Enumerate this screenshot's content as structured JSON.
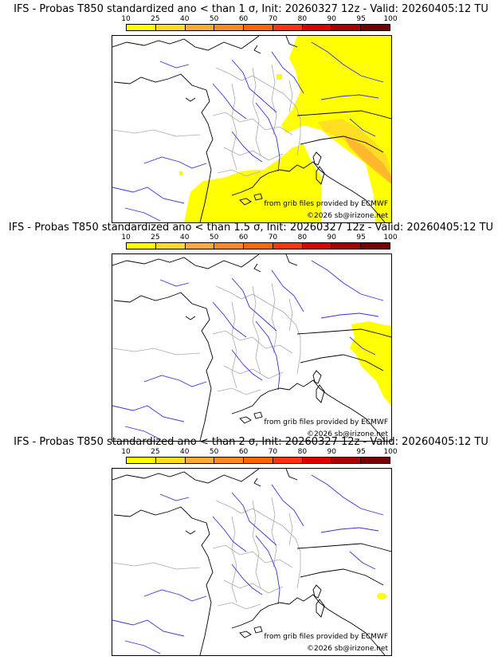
{
  "colors": {
    "scale": [
      "#ffff00",
      "#ffdd22",
      "#ffaa33",
      "#ff8822",
      "#ff6600",
      "#ff3311",
      "#dd0000",
      "#aa0000",
      "#770000"
    ],
    "coast": "#000000",
    "rivers": "#3333dd",
    "borders": "#aaaaaa"
  },
  "colorbar": {
    "ticks": [
      "10",
      "25",
      "40",
      "50",
      "60",
      "70",
      "80",
      "90",
      "95",
      "100"
    ]
  },
  "panels": [
    {
      "title": "IFS - Probas T850  standardized ano < than 1 σ, Init: 20260327 12z - Valid: 20260405:12 TU",
      "credit_line1": "from grib files provided by ECMWF",
      "credit_line2": "©2026 sb@irizone.net"
    },
    {
      "title": "IFS - Probas T850  standardized ano < than 1.5 σ, Init: 20260327 12z - Valid: 20260405:12 TU",
      "credit_line1": "from grib files provided by ECMWF",
      "credit_line2": "©2026 sb@irizone.net"
    },
    {
      "title": "IFS - Probas T850  standardized ano < than 2 σ, Init: 20260327 12z - Valid: 20260405:12 TU",
      "credit_line1": "from grib files provided by ECMWF",
      "credit_line2": "©2026 sb@irizone.net"
    }
  ]
}
